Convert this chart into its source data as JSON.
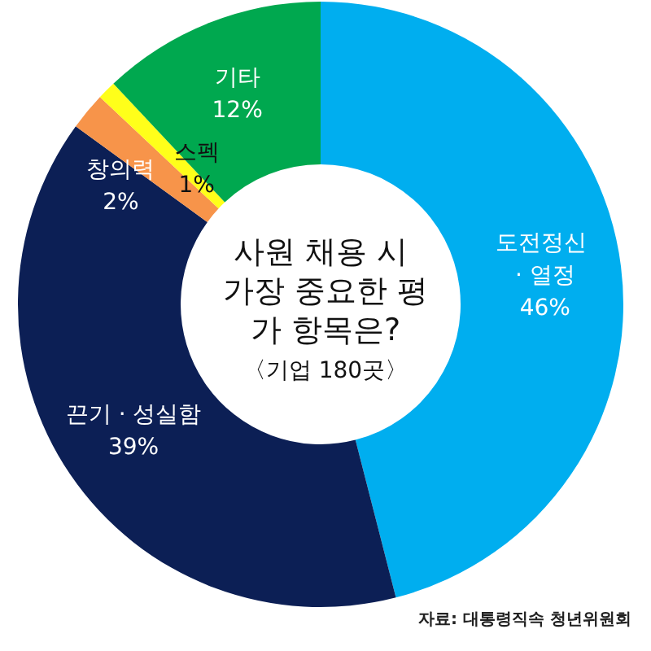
{
  "chart_data": {
    "type": "donut",
    "title": "사원 채용 시 가장 중요한 평가 항목은?",
    "subtitle": "〈기업 180곳〉",
    "categories": [
      "도전정신 · 열정",
      "끈기 · 성실함",
      "창의력",
      "스펙",
      "기타"
    ],
    "values": [
      46,
      39,
      2,
      1,
      12
    ],
    "colors": [
      "#00aeef",
      "#0c1f55",
      "#f7944a",
      "#ffff1a",
      "#00a84f"
    ],
    "value_labels": [
      "46%",
      "39%",
      "2%",
      "1%",
      "12%"
    ],
    "legend": false,
    "annotations": [
      "자료: 대통령직속 청년위원회"
    ]
  }
}
